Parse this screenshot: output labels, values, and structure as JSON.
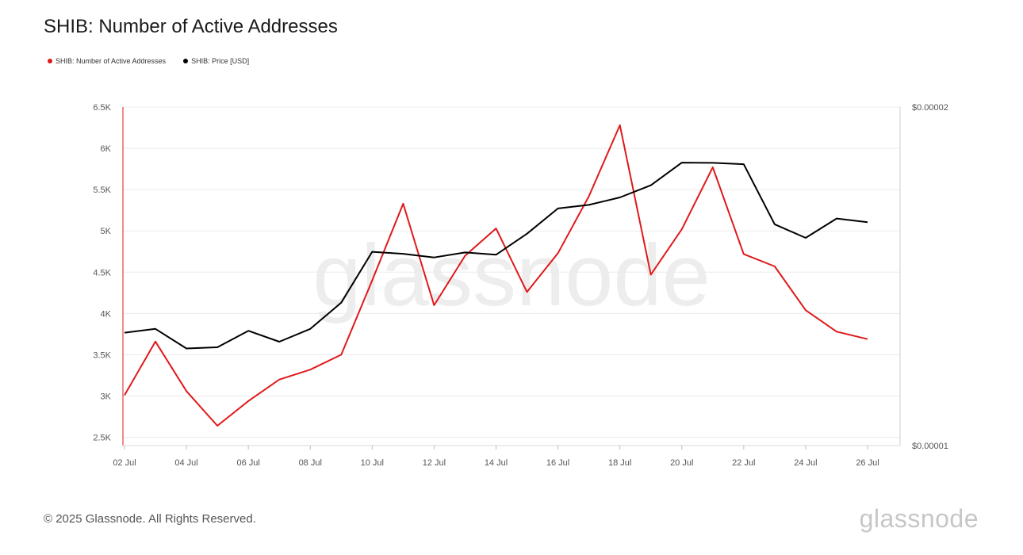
{
  "title": "SHIB: Number of Active Addresses",
  "legend": [
    {
      "label": "SHIB: Number of Active Addresses",
      "color": "#e0191b"
    },
    {
      "label": "SHIB: Price [USD]",
      "color": "#000000"
    }
  ],
  "footer": {
    "copyright": "© 2025 Glassnode. All Rights Reserved.",
    "logo": "glassnode",
    "watermark": "glassnode"
  },
  "chart_data": {
    "type": "line",
    "x": [
      "02 Jul",
      "03 Jul",
      "04 Jul",
      "05 Jul",
      "06 Jul",
      "07 Jul",
      "08 Jul",
      "09 Jul",
      "10 Jul",
      "11 Jul",
      "12 Jul",
      "13 Jul",
      "14 Jul",
      "15 Jul",
      "16 Jul",
      "17 Jul",
      "18 Jul",
      "19 Jul",
      "20 Jul",
      "21 Jul",
      "22 Jul",
      "23 Jul",
      "24 Jul",
      "25 Jul",
      "26 Jul"
    ],
    "x_tick_labels": [
      "02 Jul",
      "04 Jul",
      "06 Jul",
      "08 Jul",
      "10 Jul",
      "12 Jul",
      "14 Jul",
      "16 Jul",
      "18 Jul",
      "20 Jul",
      "22 Jul",
      "24 Jul",
      "26 Jul"
    ],
    "y_left": {
      "ticks": [
        2500,
        3000,
        3500,
        4000,
        4500,
        5000,
        5500,
        6000,
        6500
      ],
      "tick_labels": [
        "2.5K",
        "3K",
        "3.5K",
        "4K",
        "4.5K",
        "5K",
        "5.5K",
        "6K",
        "6.5K"
      ],
      "range": [
        2400,
        6500
      ]
    },
    "y_right": {
      "scale": "log",
      "ticks": [
        1e-05,
        2e-05
      ],
      "tick_labels": [
        "$0.00001",
        "$0.00002"
      ],
      "range": [
        1e-05,
        2e-05
      ]
    },
    "grid": true,
    "legend_position": "top-left",
    "series": [
      {
        "name": "SHIB: Number of Active Addresses",
        "axis": "left",
        "color": "#e0191b",
        "values": [
          3010,
          3660,
          3060,
          2640,
          2940,
          3200,
          3320,
          3500,
          4400,
          5330,
          4100,
          4700,
          5030,
          4260,
          4730,
          5420,
          6280,
          4470,
          5020,
          5770,
          4720,
          4570,
          4040,
          3780,
          3690
        ]
      },
      {
        "name": "SHIB: Price [USD]",
        "axis": "right",
        "color": "#000000",
        "values": [
          1.26e-05,
          1.27e-05,
          1.22e-05,
          1.223e-05,
          1.265e-05,
          1.237e-05,
          1.27e-05,
          1.34e-05,
          1.487e-05,
          1.481e-05,
          1.47e-05,
          1.485e-05,
          1.478e-05,
          1.543e-05,
          1.625e-05,
          1.637e-05,
          1.662e-05,
          1.704e-05,
          1.785e-05,
          1.784e-05,
          1.779e-05,
          1.573e-05,
          1.53e-05,
          1.592e-05,
          1.58e-05
        ]
      }
    ]
  }
}
